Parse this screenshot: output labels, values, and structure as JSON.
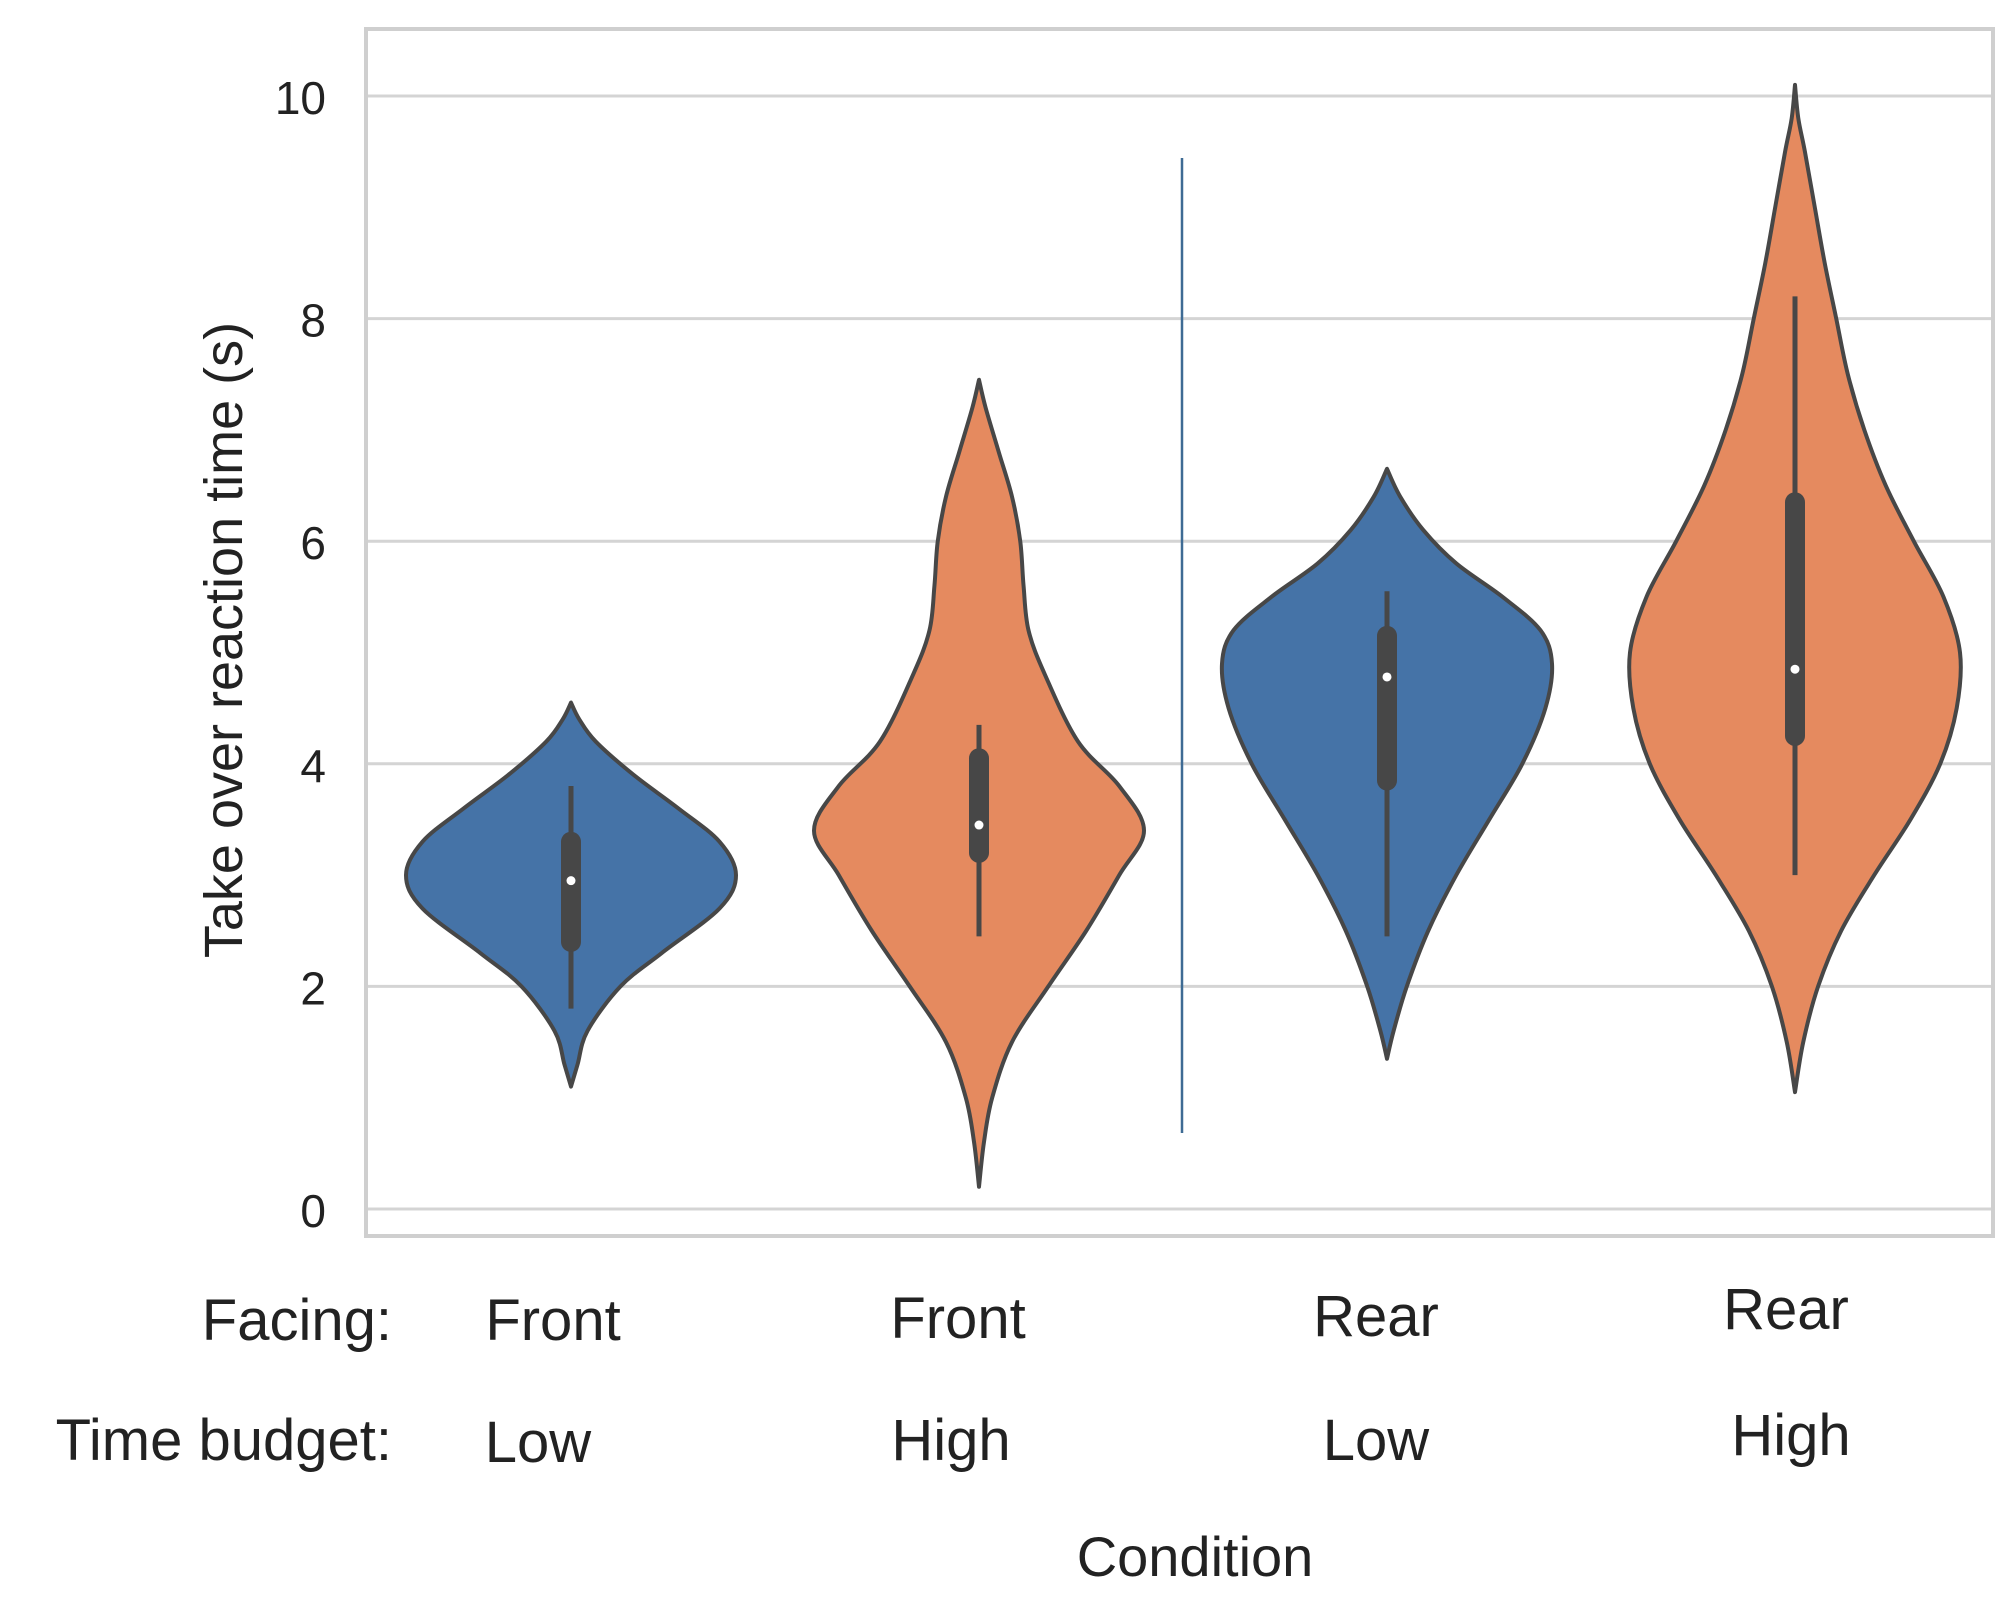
{
  "chart_data": {
    "type": "violin",
    "ylabel": "Take over reaction time (s)",
    "xlabel": "Condition",
    "ylim": [
      0,
      10.6
    ],
    "yticks": [
      0,
      2,
      4,
      6,
      8,
      10
    ],
    "ytick_labels": [
      "0",
      "2",
      "4",
      "6",
      "8",
      "10"
    ],
    "grid": true,
    "row_labels": {
      "facing": "Facing:",
      "time_budget": "Time budget:"
    },
    "colors": {
      "front": "#4573a7",
      "high": "#e58a5f",
      "outline": "#474747",
      "grid": "#d4d4d4",
      "divider": "#3e6b94"
    },
    "groups": [
      {
        "facing": "Front",
        "time_budget": "Low",
        "color": "#4573a7",
        "min": 1.8,
        "q1": 2.4,
        "median": 2.95,
        "q3": 3.3,
        "max": 3.8,
        "kde_min": 1.1,
        "kde_max": 4.55,
        "density": [
          [
            1.1,
            0.0
          ],
          [
            1.3,
            0.04
          ],
          [
            1.6,
            0.1
          ],
          [
            2.0,
            0.3
          ],
          [
            2.3,
            0.55
          ],
          [
            2.7,
            0.9
          ],
          [
            3.0,
            1.0
          ],
          [
            3.3,
            0.9
          ],
          [
            3.6,
            0.65
          ],
          [
            3.9,
            0.38
          ],
          [
            4.2,
            0.15
          ],
          [
            4.4,
            0.05
          ],
          [
            4.55,
            0.0
          ]
        ]
      },
      {
        "facing": "Front",
        "time_budget": "High",
        "color": "#e58a5f",
        "min": 2.45,
        "q1": 3.2,
        "median": 3.45,
        "q3": 4.05,
        "max": 4.35,
        "kde_min": 0.2,
        "kde_max": 7.45,
        "density": [
          [
            0.2,
            0.0
          ],
          [
            0.6,
            0.03
          ],
          [
            1.0,
            0.08
          ],
          [
            1.5,
            0.2
          ],
          [
            2.0,
            0.42
          ],
          [
            2.5,
            0.65
          ],
          [
            3.0,
            0.85
          ],
          [
            3.4,
            1.0
          ],
          [
            3.8,
            0.85
          ],
          [
            4.2,
            0.6
          ],
          [
            4.8,
            0.4
          ],
          [
            5.2,
            0.3
          ],
          [
            5.6,
            0.27
          ],
          [
            6.0,
            0.25
          ],
          [
            6.4,
            0.2
          ],
          [
            6.8,
            0.12
          ],
          [
            7.2,
            0.04
          ],
          [
            7.45,
            0.0
          ]
        ]
      },
      {
        "facing": "Rear",
        "time_budget": "Low",
        "color": "#4573a7",
        "min": 2.45,
        "q1": 3.85,
        "median": 4.78,
        "q3": 5.15,
        "max": 5.55,
        "kde_min": 1.35,
        "kde_max": 6.65,
        "density": [
          [
            1.35,
            0.0
          ],
          [
            1.6,
            0.04
          ],
          [
            2.0,
            0.12
          ],
          [
            2.5,
            0.25
          ],
          [
            3.0,
            0.42
          ],
          [
            3.5,
            0.62
          ],
          [
            4.0,
            0.82
          ],
          [
            4.5,
            0.96
          ],
          [
            4.9,
            1.0
          ],
          [
            5.2,
            0.93
          ],
          [
            5.5,
            0.7
          ],
          [
            5.8,
            0.42
          ],
          [
            6.1,
            0.22
          ],
          [
            6.4,
            0.08
          ],
          [
            6.65,
            0.0
          ]
        ]
      },
      {
        "facing": "Rear",
        "time_budget": "High",
        "color": "#e58a5f",
        "min": 3.0,
        "q1": 4.25,
        "median": 4.85,
        "q3": 6.35,
        "max": 8.2,
        "kde_min": 1.05,
        "kde_max": 10.1,
        "density": [
          [
            1.05,
            0.0
          ],
          [
            1.5,
            0.05
          ],
          [
            2.0,
            0.14
          ],
          [
            2.5,
            0.28
          ],
          [
            3.0,
            0.48
          ],
          [
            3.5,
            0.7
          ],
          [
            4.0,
            0.88
          ],
          [
            4.5,
            0.98
          ],
          [
            5.0,
            1.0
          ],
          [
            5.5,
            0.9
          ],
          [
            6.0,
            0.72
          ],
          [
            6.5,
            0.55
          ],
          [
            7.0,
            0.42
          ],
          [
            7.5,
            0.32
          ],
          [
            8.0,
            0.25
          ],
          [
            8.5,
            0.18
          ],
          [
            9.0,
            0.12
          ],
          [
            9.5,
            0.06
          ],
          [
            9.8,
            0.02
          ],
          [
            10.1,
            0.0
          ]
        ]
      }
    ]
  }
}
